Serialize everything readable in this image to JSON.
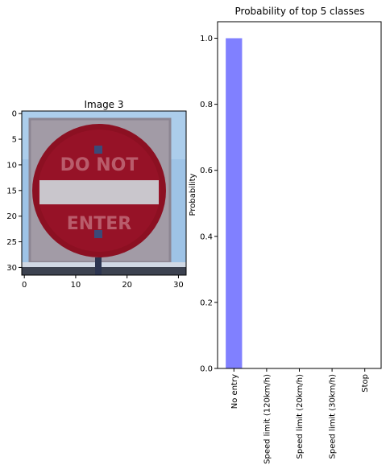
{
  "image_panel": {
    "title": "Image 3",
    "xlim": [
      -0.5,
      31.5
    ],
    "ylim": [
      31.5,
      -0.5
    ],
    "xticks": [
      0,
      10,
      20,
      30
    ],
    "yticks": [
      0,
      5,
      10,
      15,
      20,
      25,
      30
    ],
    "sign_words": [
      "DO NOT",
      "ENTER"
    ],
    "colors": {
      "sky": "#9ec3e6",
      "sign_board": "#a09aa4",
      "sign_red": "#8c1022",
      "bar": "#c9c6cc",
      "ground": "#3c4250"
    }
  },
  "chart_data": {
    "type": "bar",
    "title": "Probability of top 5 classes",
    "xlabel": "",
    "ylabel": "Probability",
    "categories": [
      "No entry",
      "Speed limit (120km/h)",
      "Speed limit (20km/h)",
      "Speed limit (30km/h)",
      "Stop"
    ],
    "values": [
      1.0,
      0.0,
      0.0,
      0.0,
      0.0
    ],
    "ylim": [
      0,
      1.05
    ],
    "yticks": [
      0.0,
      0.2,
      0.4,
      0.6,
      0.8,
      1.0
    ],
    "ytick_labels": [
      "0.0",
      "0.2",
      "0.4",
      "0.6",
      "0.8",
      "1.0"
    ],
    "bar_color": "#8080ff",
    "grid": false
  }
}
